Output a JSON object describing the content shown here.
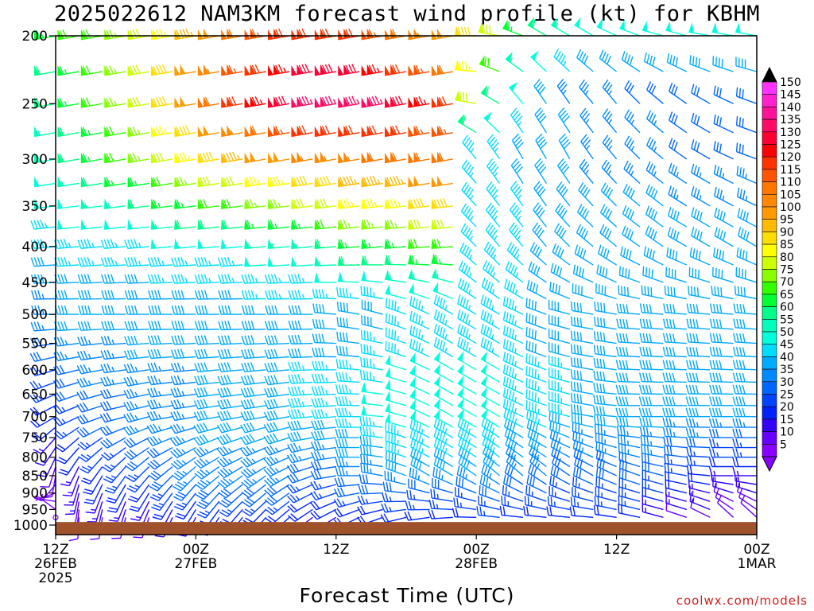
{
  "chart_data": {
    "type": "wind-barb time-height",
    "title": "2025022612 NAM3KM forecast wind profile (kt) for KBHM",
    "xlabel": "Forecast Time (UTC)",
    "credit": "coolwx.com/models",
    "y_axis": {
      "scale": "log-pressure",
      "ylim": [
        1000,
        200
      ],
      "ticks": [
        "200",
        "250",
        "300",
        "350",
        "400",
        "450",
        "500",
        "550",
        "600",
        "650",
        "700",
        "750",
        "800",
        "850",
        "900",
        "950",
        "1000"
      ]
    },
    "x_axis": {
      "range_hours": [
        0,
        60
      ],
      "ticks": [
        {
          "hour": 0,
          "line1": "12Z",
          "line2": "26FEB",
          "line3": "2025"
        },
        {
          "hour": 12,
          "line1": "00Z",
          "line2": "27FEB",
          "line3": ""
        },
        {
          "hour": 24,
          "line1": "12Z",
          "line2": "",
          "line3": ""
        },
        {
          "hour": 36,
          "line1": "00Z",
          "line2": "28FEB",
          "line3": ""
        },
        {
          "hour": 48,
          "line1": "12Z",
          "line2": "",
          "line3": ""
        },
        {
          "hour": 60,
          "line1": "00Z",
          "line2": "1MAR",
          "line3": ""
        }
      ]
    },
    "colorbar": {
      "labels": [
        "150",
        "145",
        "140",
        "135",
        "130",
        "125",
        "120",
        "115",
        "110",
        "105",
        "100",
        "95",
        "90",
        "85",
        "80",
        "75",
        "70",
        "65",
        "60",
        "55",
        "50",
        "45",
        "40",
        "35",
        "30",
        "25",
        "20",
        "15",
        "10",
        "5"
      ],
      "colors": [
        "#ff33ff",
        "#ff22cc",
        "#ff1199",
        "#ff0a66",
        "#ff0033",
        "#ff0000",
        "#ff3300",
        "#ff5500",
        "#ff7700",
        "#ff8800",
        "#ff9900",
        "#ffbb00",
        "#ffdd00",
        "#ffff00",
        "#ccff00",
        "#88ff00",
        "#33ff00",
        "#00ff33",
        "#00ff88",
        "#00ffbb",
        "#00ffdd",
        "#00ddff",
        "#00aaff",
        "#0088ff",
        "#0066ff",
        "#0044ff",
        "#0022ff",
        "#3300ff",
        "#6600ff",
        "#8800ff"
      ]
    },
    "wind_scale_kt": [
      5,
      10,
      15,
      20,
      25,
      30,
      35,
      40,
      45,
      50,
      55,
      60,
      65,
      70,
      75,
      80,
      85,
      90,
      95,
      100,
      105,
      110,
      115,
      120,
      125,
      130,
      135,
      140,
      145,
      150
    ],
    "levels_hpa": [
      1000,
      975,
      950,
      925,
      900,
      875,
      850,
      825,
      800,
      775,
      750,
      725,
      700,
      675,
      650,
      625,
      600,
      575,
      550,
      525,
      500,
      475,
      450,
      425,
      400,
      375,
      350,
      325,
      300,
      275,
      250,
      225,
      200
    ],
    "hours": [
      0,
      2,
      4,
      6,
      8,
      10,
      12,
      14,
      16,
      18,
      20,
      22,
      24,
      26,
      28,
      30,
      32,
      34,
      36,
      38,
      40,
      42,
      44,
      46,
      48,
      50,
      52,
      54,
      56,
      58,
      60
    ],
    "surface_pressure_hpa": 990,
    "wind_profiles": [
      {
        "level_hpa": 1000,
        "speed_kt": [
          0,
          10,
          10,
          10,
          10,
          10,
          10,
          15,
          15,
          15,
          15,
          15,
          15,
          15,
          15,
          15,
          15,
          15,
          15,
          20,
          20,
          20,
          20,
          20,
          20,
          20,
          10,
          10,
          10,
          10,
          10
        ],
        "dir_deg": [
          0,
          180,
          185,
          190,
          195,
          200,
          205,
          210,
          215,
          220,
          225,
          230,
          235,
          240,
          245,
          250,
          255,
          260,
          265,
          270,
          270,
          270,
          270,
          270,
          275,
          280,
          285,
          290,
          300,
          320,
          320
        ]
      },
      {
        "level_hpa": 850,
        "speed_kt": [
          10,
          15,
          20,
          25,
          25,
          30,
          35,
          35,
          35,
          35,
          35,
          30,
          30,
          35,
          35,
          40,
          40,
          40,
          40,
          40,
          35,
          35,
          30,
          30,
          30,
          30,
          30,
          25,
          20,
          15,
          15
        ],
        "dir_deg": [
          190,
          200,
          210,
          215,
          220,
          225,
          225,
          230,
          235,
          235,
          240,
          250,
          260,
          270,
          280,
          290,
          300,
          300,
          305,
          310,
          310,
          310,
          305,
          300,
          295,
          290,
          285,
          280,
          275,
          270,
          270
        ]
      },
      {
        "level_hpa": 700,
        "speed_kt": [
          20,
          25,
          30,
          30,
          35,
          35,
          35,
          40,
          40,
          40,
          40,
          45,
          45,
          45,
          50,
          50,
          50,
          50,
          50,
          50,
          45,
          45,
          45,
          40,
          40,
          40,
          40,
          40,
          40,
          40,
          40
        ],
        "dir_deg": [
          240,
          245,
          250,
          255,
          255,
          260,
          260,
          260,
          260,
          260,
          260,
          265,
          265,
          270,
          275,
          285,
          295,
          300,
          300,
          300,
          295,
          290,
          285,
          280,
          275,
          270,
          270,
          270,
          270,
          270,
          270
        ]
      },
      {
        "level_hpa": 500,
        "speed_kt": [
          35,
          40,
          40,
          40,
          40,
          40,
          40,
          40,
          40,
          40,
          40,
          40,
          40,
          40,
          40,
          45,
          45,
          45,
          45,
          45,
          45,
          40,
          40,
          40,
          40,
          40,
          40,
          40,
          40,
          40,
          40
        ],
        "dir_deg": [
          270,
          270,
          270,
          270,
          270,
          270,
          270,
          270,
          270,
          270,
          270,
          270,
          275,
          280,
          285,
          290,
          295,
          300,
          300,
          300,
          295,
          290,
          285,
          280,
          280,
          275,
          275,
          275,
          275,
          275,
          275
        ]
      },
      {
        "level_hpa": 400,
        "speed_kt": [
          45,
          45,
          45,
          45,
          45,
          50,
          50,
          50,
          50,
          55,
          55,
          55,
          60,
          65,
          65,
          65,
          70,
          70,
          45,
          45,
          45,
          40,
          40,
          40,
          40,
          40,
          40,
          40,
          40,
          40,
          40
        ],
        "dir_deg": [
          265,
          265,
          265,
          265,
          265,
          265,
          265,
          265,
          265,
          265,
          265,
          265,
          265,
          265,
          265,
          265,
          265,
          265,
          315,
          320,
          320,
          320,
          315,
          310,
          310,
          305,
          305,
          300,
          300,
          300,
          300
        ]
      },
      {
        "level_hpa": 300,
        "speed_kt": [
          55,
          60,
          65,
          70,
          75,
          80,
          85,
          90,
          95,
          100,
          100,
          105,
          105,
          105,
          110,
          110,
          110,
          110,
          45,
          45,
          40,
          40,
          40,
          35,
          35,
          35,
          35,
          30,
          30,
          30,
          30
        ],
        "dir_deg": [
          260,
          260,
          260,
          260,
          260,
          260,
          260,
          260,
          260,
          260,
          260,
          260,
          260,
          260,
          260,
          260,
          260,
          260,
          320,
          325,
          330,
          330,
          330,
          325,
          320,
          315,
          310,
          305,
          300,
          295,
          290
        ]
      },
      {
        "level_hpa": 250,
        "speed_kt": [
          60,
          65,
          70,
          75,
          80,
          90,
          100,
          110,
          120,
          125,
          130,
          135,
          135,
          135,
          135,
          130,
          125,
          120,
          80,
          60,
          50,
          40,
          35,
          35,
          35,
          30,
          30,
          30,
          30,
          30,
          30
        ],
        "dir_deg": [
          260,
          260,
          260,
          260,
          260,
          260,
          260,
          260,
          260,
          260,
          260,
          260,
          260,
          260,
          260,
          260,
          260,
          260,
          280,
          300,
          320,
          325,
          325,
          320,
          320,
          315,
          310,
          305,
          300,
          295,
          290
        ]
      },
      {
        "level_hpa": 200,
        "speed_kt": [
          65,
          70,
          70,
          75,
          80,
          85,
          95,
          100,
          110,
          115,
          120,
          120,
          120,
          120,
          115,
          110,
          105,
          100,
          90,
          80,
          65,
          60,
          55,
          50,
          50,
          50,
          50,
          50,
          50,
          50,
          50
        ],
        "dir_deg": [
          260,
          260,
          260,
          260,
          260,
          260,
          260,
          260,
          260,
          260,
          260,
          260,
          260,
          260,
          260,
          260,
          260,
          260,
          270,
          280,
          290,
          300,
          300,
          300,
          295,
          290,
          285,
          285,
          280,
          280,
          280
        ]
      }
    ]
  }
}
